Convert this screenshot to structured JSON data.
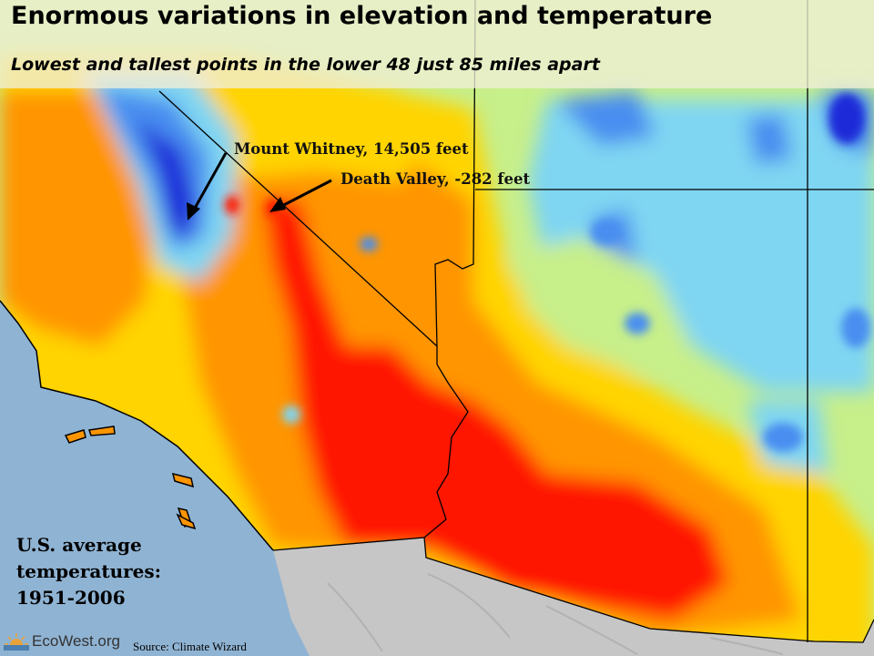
{
  "header": {
    "title": "Enormous variations in elevation and temperature",
    "subtitle": "Lowest and tallest points in the lower 48 just 85 miles apart"
  },
  "annotations": {
    "mount_whitney": "Mount Whitney,  14,505 feet",
    "death_valley": "Death Valley, -282 feet"
  },
  "legend": {
    "lines": [
      "U.S. average",
      "temperatures:",
      "1951-2006"
    ]
  },
  "footer": {
    "logo_text": "EcoWest.org",
    "source": "Source: Climate Wizard"
  },
  "colors": {
    "ocean": "#8fb3d3",
    "mexico_terrain": "#c6c6c6",
    "coldest": "#1a2ad8",
    "cold": "#4a8ef0",
    "cool": "#7fd6f2",
    "mild": "#c7ef8a",
    "warm": "#ffd400",
    "hot": "#ff9500",
    "hottest": "#ff1600",
    "borders": "#000000"
  }
}
